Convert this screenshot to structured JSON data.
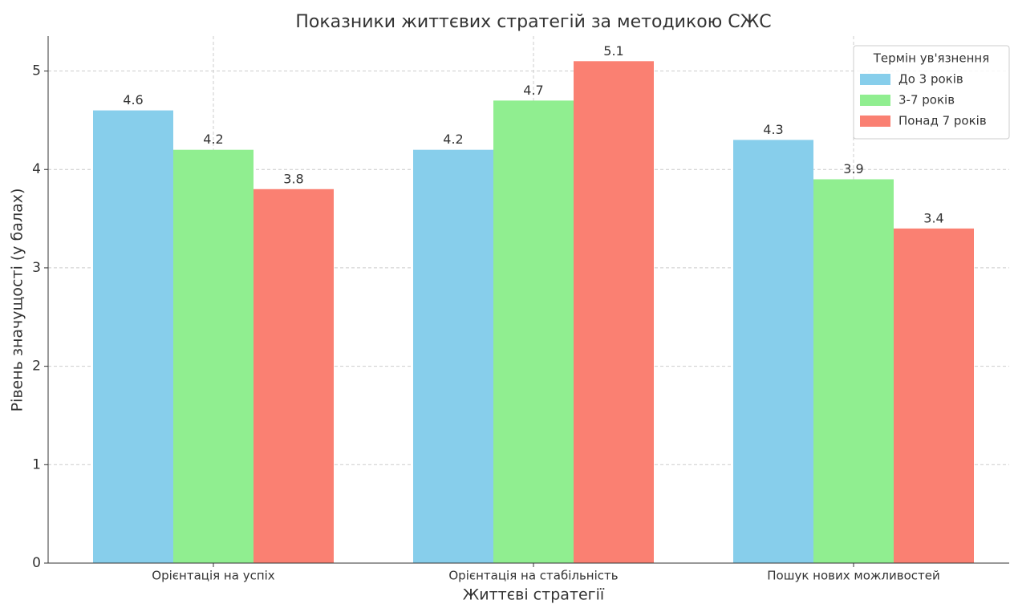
{
  "chart_data": {
    "type": "bar",
    "title": "Показники життєвих стратегій за методикою СЖС",
    "x_label": "Життєві стратегії",
    "y_label": "Рівень значущості (у балах)",
    "categories": [
      "Орієнтація на успіх",
      "Орієнтація на стабільність",
      "Пошук нових можливостей"
    ],
    "series": [
      {
        "name": "До 3 років",
        "color": "#87ceeb",
        "values": [
          4.6,
          4.2,
          4.3
        ]
      },
      {
        "name": "3-7 років",
        "color": "#90ee90",
        "values": [
          4.2,
          4.7,
          3.9
        ]
      },
      {
        "name": "Понад 7 років",
        "color": "#fa8072",
        "values": [
          3.8,
          5.1,
          3.4
        ]
      }
    ],
    "legend_title": "Термін ув'язнення",
    "legend_position": "upper right",
    "ylim": [
      0,
      5.355
    ],
    "yticks": [
      0,
      1,
      2,
      3,
      4,
      5
    ],
    "grid": true
  }
}
